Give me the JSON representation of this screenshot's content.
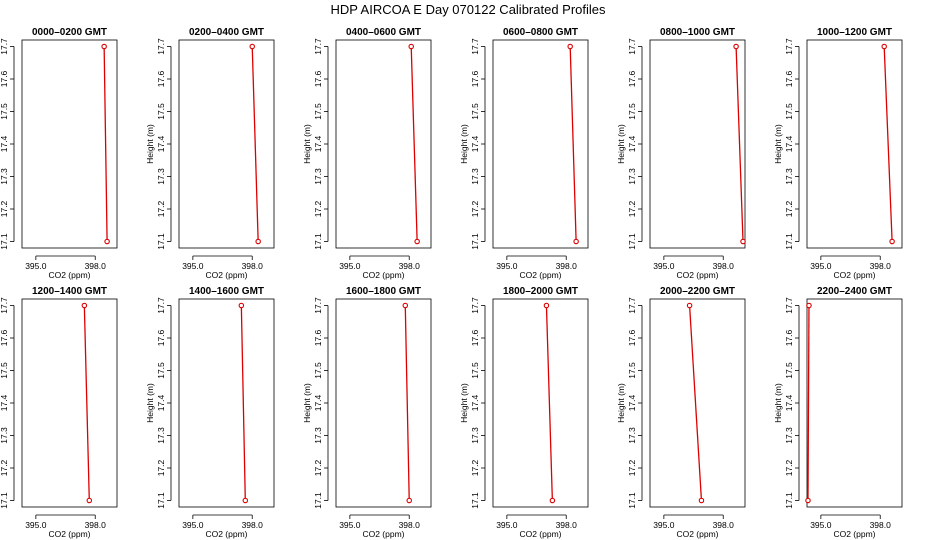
{
  "title": "HDP AIRCOA E  Day 070122  Calibrated Profiles",
  "colors": {
    "profile": "#dd0000",
    "axis": "#000000",
    "background": "#ffffff"
  },
  "chart_data": [
    {
      "type": "line",
      "title": "0000–0200 GMT",
      "xlabel": "CO2 (ppm)",
      "ylabel": "Height (m)",
      "xlim": [
        394.3,
        399.1
      ],
      "ylim": [
        17.08,
        17.72
      ],
      "xticks": [
        395.0,
        398.0
      ],
      "xtick_labels": [
        "395.0",
        "398.0"
      ],
      "yticks": [
        17.1,
        17.2,
        17.3,
        17.4,
        17.5,
        17.6,
        17.7
      ],
      "ytick_labels": [
        "17.1",
        "17.2",
        "17.3",
        "17.4",
        "17.5",
        "17.6",
        "17.7"
      ],
      "points": [
        {
          "x": 398.45,
          "y": 17.7
        },
        {
          "x": 398.6,
          "y": 17.1
        }
      ]
    },
    {
      "type": "line",
      "title": "0200–0400 GMT",
      "xlabel": "CO2 (ppm)",
      "ylabel": "Height (m)",
      "xlim": [
        394.3,
        399.1
      ],
      "ylim": [
        17.08,
        17.72
      ],
      "xticks": [
        395.0,
        398.0
      ],
      "xtick_labels": [
        "395.0",
        "398.0"
      ],
      "yticks": [
        17.1,
        17.2,
        17.3,
        17.4,
        17.5,
        17.6,
        17.7
      ],
      "ytick_labels": [
        "17.1",
        "17.2",
        "17.3",
        "17.4",
        "17.5",
        "17.6",
        "17.7"
      ],
      "points": [
        {
          "x": 398.0,
          "y": 17.7
        },
        {
          "x": 398.3,
          "y": 17.1
        }
      ]
    },
    {
      "type": "line",
      "title": "0400–0600 GMT",
      "xlabel": "CO2 (ppm)",
      "ylabel": "Height (m)",
      "xlim": [
        394.3,
        399.1
      ],
      "ylim": [
        17.08,
        17.72
      ],
      "xticks": [
        395.0,
        398.0
      ],
      "xtick_labels": [
        "395.0",
        "398.0"
      ],
      "yticks": [
        17.1,
        17.2,
        17.3,
        17.4,
        17.5,
        17.6,
        17.7
      ],
      "ytick_labels": [
        "17.1",
        "17.2",
        "17.3",
        "17.4",
        "17.5",
        "17.6",
        "17.7"
      ],
      "points": [
        {
          "x": 398.1,
          "y": 17.7
        },
        {
          "x": 398.4,
          "y": 17.1
        }
      ]
    },
    {
      "type": "line",
      "title": "0600–0800 GMT",
      "xlabel": "CO2 (ppm)",
      "ylabel": "Height (m)",
      "xlim": [
        394.3,
        399.1
      ],
      "ylim": [
        17.08,
        17.72
      ],
      "xticks": [
        395.0,
        398.0
      ],
      "xtick_labels": [
        "395.0",
        "398.0"
      ],
      "yticks": [
        17.1,
        17.2,
        17.3,
        17.4,
        17.5,
        17.6,
        17.7
      ],
      "ytick_labels": [
        "17.1",
        "17.2",
        "17.3",
        "17.4",
        "17.5",
        "17.6",
        "17.7"
      ],
      "points": [
        {
          "x": 398.2,
          "y": 17.7
        },
        {
          "x": 398.5,
          "y": 17.1
        }
      ]
    },
    {
      "type": "line",
      "title": "0800–1000 GMT",
      "xlabel": "CO2 (ppm)",
      "ylabel": "Height (m)",
      "xlim": [
        394.3,
        399.1
      ],
      "ylim": [
        17.08,
        17.72
      ],
      "xticks": [
        395.0,
        398.0
      ],
      "xtick_labels": [
        "395.0",
        "398.0"
      ],
      "yticks": [
        17.1,
        17.2,
        17.3,
        17.4,
        17.5,
        17.6,
        17.7
      ],
      "ytick_labels": [
        "17.1",
        "17.2",
        "17.3",
        "17.4",
        "17.5",
        "17.6",
        "17.7"
      ],
      "points": [
        {
          "x": 398.65,
          "y": 17.7
        },
        {
          "x": 399.0,
          "y": 17.1
        }
      ]
    },
    {
      "type": "line",
      "title": "1000–1200 GMT",
      "xlabel": "CO2 (ppm)",
      "ylabel": "Height (m)",
      "xlim": [
        394.3,
        399.1
      ],
      "ylim": [
        17.08,
        17.72
      ],
      "xticks": [
        395.0,
        398.0
      ],
      "xtick_labels": [
        "395.0",
        "398.0"
      ],
      "yticks": [
        17.1,
        17.2,
        17.3,
        17.4,
        17.5,
        17.6,
        17.7
      ],
      "ytick_labels": [
        "17.1",
        "17.2",
        "17.3",
        "17.4",
        "17.5",
        "17.6",
        "17.7"
      ],
      "points": [
        {
          "x": 398.2,
          "y": 17.7
        },
        {
          "x": 398.6,
          "y": 17.1
        }
      ]
    },
    {
      "type": "line",
      "title": "1200–1400 GMT",
      "xlabel": "CO2 (ppm)",
      "ylabel": "Height (m)",
      "xlim": [
        394.3,
        399.1
      ],
      "ylim": [
        17.08,
        17.72
      ],
      "xticks": [
        395.0,
        398.0
      ],
      "xtick_labels": [
        "395.0",
        "398.0"
      ],
      "yticks": [
        17.1,
        17.2,
        17.3,
        17.4,
        17.5,
        17.6,
        17.7
      ],
      "ytick_labels": [
        "17.1",
        "17.2",
        "17.3",
        "17.4",
        "17.5",
        "17.6",
        "17.7"
      ],
      "points": [
        {
          "x": 397.45,
          "y": 17.7
        },
        {
          "x": 397.7,
          "y": 17.1
        }
      ]
    },
    {
      "type": "line",
      "title": "1400–1600 GMT",
      "xlabel": "CO2 (ppm)",
      "ylabel": "Height (m)",
      "xlim": [
        394.3,
        399.1
      ],
      "ylim": [
        17.08,
        17.72
      ],
      "xticks": [
        395.0,
        398.0
      ],
      "xtick_labels": [
        "395.0",
        "398.0"
      ],
      "yticks": [
        17.1,
        17.2,
        17.3,
        17.4,
        17.5,
        17.6,
        17.7
      ],
      "ytick_labels": [
        "17.1",
        "17.2",
        "17.3",
        "17.4",
        "17.5",
        "17.6",
        "17.7"
      ],
      "points": [
        {
          "x": 397.45,
          "y": 17.7
        },
        {
          "x": 397.65,
          "y": 17.1
        }
      ]
    },
    {
      "type": "line",
      "title": "1600–1800 GMT",
      "xlabel": "CO2 (ppm)",
      "ylabel": "Height (m)",
      "xlim": [
        394.3,
        399.1
      ],
      "ylim": [
        17.08,
        17.72
      ],
      "xticks": [
        395.0,
        398.0
      ],
      "xtick_labels": [
        "395.0",
        "398.0"
      ],
      "yticks": [
        17.1,
        17.2,
        17.3,
        17.4,
        17.5,
        17.6,
        17.7
      ],
      "ytick_labels": [
        "17.1",
        "17.2",
        "17.3",
        "17.4",
        "17.5",
        "17.6",
        "17.7"
      ],
      "points": [
        {
          "x": 397.8,
          "y": 17.7
        },
        {
          "x": 398.0,
          "y": 17.1
        }
      ]
    },
    {
      "type": "line",
      "title": "1800–2000 GMT",
      "xlabel": "CO2 (ppm)",
      "ylabel": "Height (m)",
      "xlim": [
        394.3,
        399.1
      ],
      "ylim": [
        17.08,
        17.72
      ],
      "xticks": [
        395.0,
        398.0
      ],
      "xtick_labels": [
        "395.0",
        "398.0"
      ],
      "yticks": [
        17.1,
        17.2,
        17.3,
        17.4,
        17.5,
        17.6,
        17.7
      ],
      "ytick_labels": [
        "17.1",
        "17.2",
        "17.3",
        "17.4",
        "17.5",
        "17.6",
        "17.7"
      ],
      "points": [
        {
          "x": 397.0,
          "y": 17.7
        },
        {
          "x": 397.3,
          "y": 17.1
        }
      ]
    },
    {
      "type": "line",
      "title": "2000–2200 GMT",
      "xlabel": "CO2 (ppm)",
      "ylabel": "Height (m)",
      "xlim": [
        394.3,
        399.1
      ],
      "ylim": [
        17.08,
        17.72
      ],
      "xticks": [
        395.0,
        398.0
      ],
      "xtick_labels": [
        "395.0",
        "398.0"
      ],
      "yticks": [
        17.1,
        17.2,
        17.3,
        17.4,
        17.5,
        17.6,
        17.7
      ],
      "ytick_labels": [
        "17.1",
        "17.2",
        "17.3",
        "17.4",
        "17.5",
        "17.6",
        "17.7"
      ],
      "points": [
        {
          "x": 396.3,
          "y": 17.7
        },
        {
          "x": 396.9,
          "y": 17.1
        }
      ]
    },
    {
      "type": "line",
      "title": "2200–2400 GMT",
      "xlabel": "CO2 (ppm)",
      "ylabel": "Height (m)",
      "xlim": [
        394.3,
        399.1
      ],
      "ylim": [
        17.08,
        17.72
      ],
      "xticks": [
        395.0,
        398.0
      ],
      "xtick_labels": [
        "395.0",
        "398.0"
      ],
      "yticks": [
        17.1,
        17.2,
        17.3,
        17.4,
        17.5,
        17.6,
        17.7
      ],
      "ytick_labels": [
        "17.1",
        "17.2",
        "17.3",
        "17.4",
        "17.5",
        "17.6",
        "17.7"
      ],
      "points": [
        {
          "x": 394.4,
          "y": 17.7
        },
        {
          "x": 394.35,
          "y": 17.1
        }
      ]
    }
  ]
}
